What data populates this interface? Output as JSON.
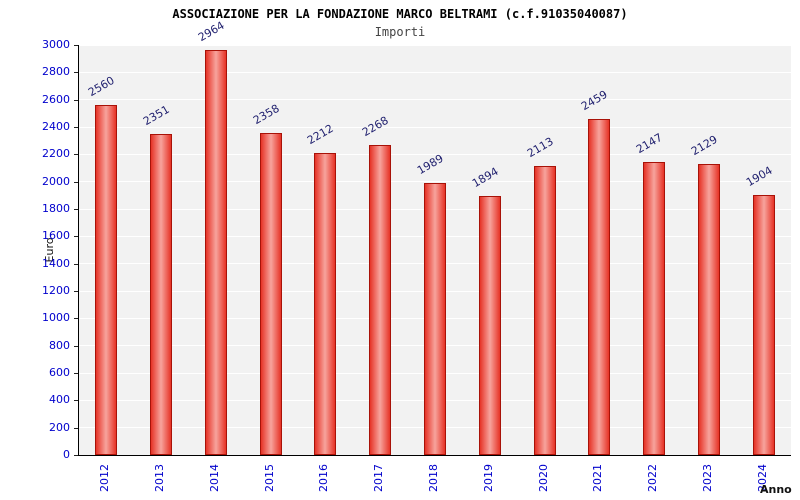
{
  "chart_data": {
    "type": "bar",
    "title": "ASSOCIAZIONE PER LA FONDAZIONE MARCO BELTRAMI (c.f.91035040087)",
    "subtitle": "Importi",
    "xlabel": "Anno",
    "ylabel": "Euro",
    "categories": [
      "2012",
      "2013",
      "2014",
      "2015",
      "2016",
      "2017",
      "2018",
      "2019",
      "2020",
      "2021",
      "2022",
      "2023",
      "2024"
    ],
    "values": [
      2560,
      2351,
      2964,
      2358,
      2212,
      2268,
      1989,
      1894,
      2113,
      2459,
      2147,
      2129,
      1904
    ],
    "ylim": [
      0,
      3000
    ],
    "ytick_step": 200,
    "grid": true,
    "legend": "none",
    "colors": {
      "bar_edge": "#e63326",
      "bar_highlight": "#f7a49d",
      "bar_border": "#a81208",
      "plot_bg": "#f2f2f2",
      "grid_line": "#ffffff",
      "axis_tick_label": "#0000cc",
      "value_label": "#1f1f6e"
    }
  }
}
